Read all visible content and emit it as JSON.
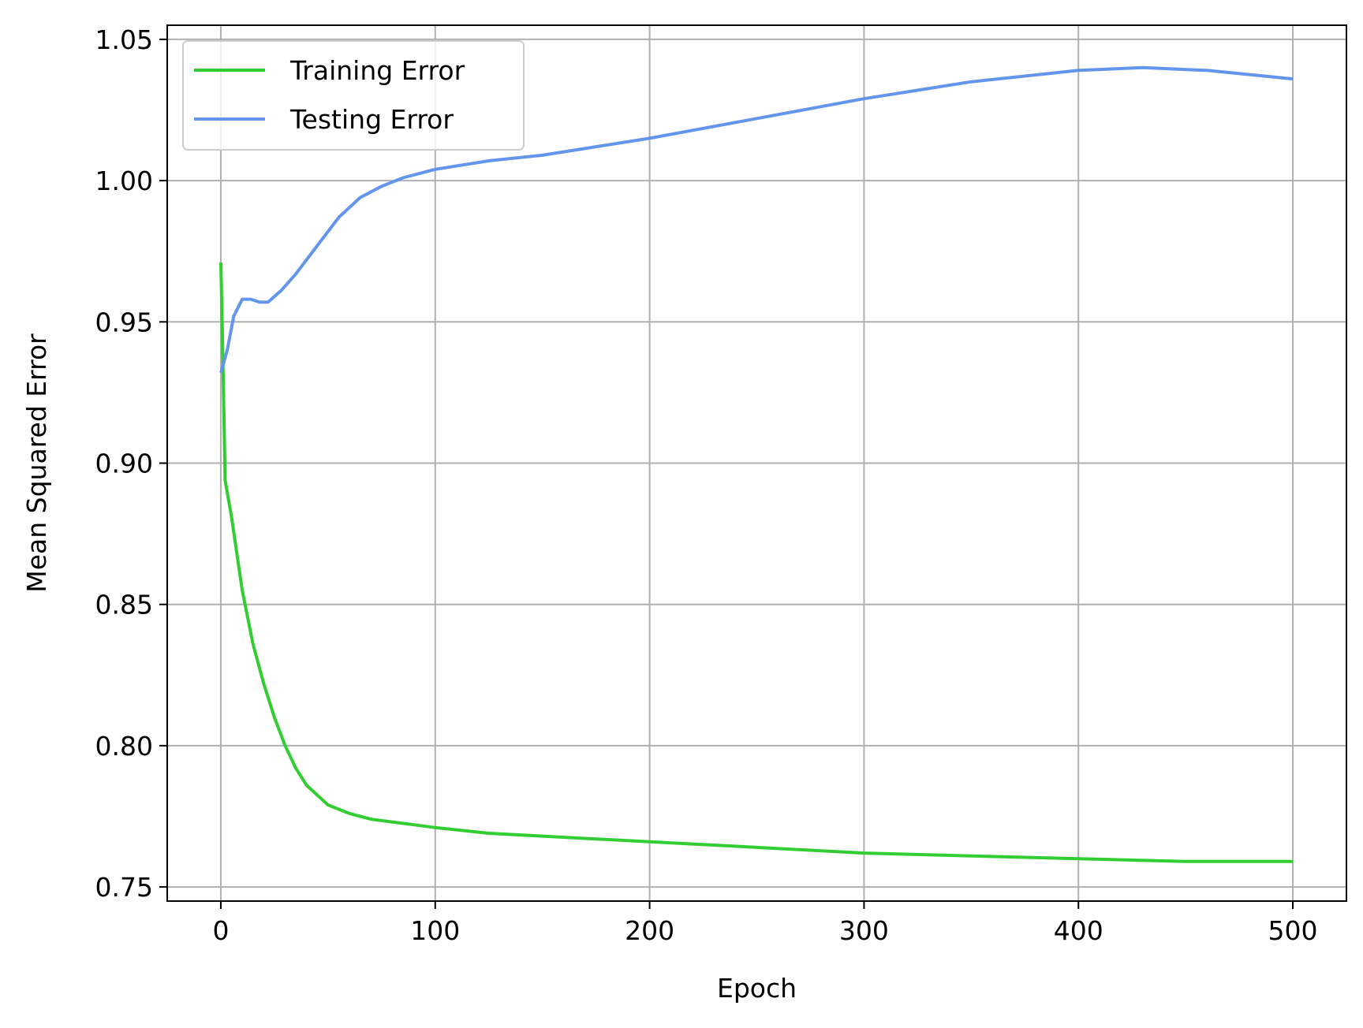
{
  "chart_data": {
    "type": "line",
    "title": "",
    "xlabel": "Epoch",
    "ylabel": "Mean Squared Error",
    "xlim": [
      -25,
      525
    ],
    "ylim": [
      0.745,
      1.055
    ],
    "xticks": [
      0,
      100,
      200,
      300,
      400,
      500
    ],
    "xtick_labels": [
      "0",
      "100",
      "200",
      "300",
      "400",
      "500"
    ],
    "yticks": [
      0.75,
      0.8,
      0.85,
      0.9,
      0.95,
      1.0,
      1.05
    ],
    "ytick_labels": [
      "0.75",
      "0.80",
      "0.85",
      "0.90",
      "0.95",
      "1.00",
      "1.05"
    ],
    "grid": true,
    "legend_position": "top-left",
    "series": [
      {
        "name": "Training Error",
        "color": "#32cd32",
        "x": [
          0,
          1,
          2,
          5,
          10,
          15,
          20,
          25,
          30,
          35,
          40,
          50,
          60,
          70,
          80,
          90,
          100,
          125,
          150,
          175,
          200,
          250,
          300,
          350,
          400,
          450,
          500
        ],
        "y": [
          0.971,
          0.935,
          0.894,
          0.881,
          0.855,
          0.836,
          0.822,
          0.81,
          0.8,
          0.792,
          0.786,
          0.779,
          0.776,
          0.774,
          0.773,
          0.772,
          0.771,
          0.769,
          0.768,
          0.767,
          0.766,
          0.764,
          0.762,
          0.761,
          0.76,
          0.759,
          0.759
        ]
      },
      {
        "name": "Testing Error",
        "color": "#6495ed",
        "x": [
          0,
          3,
          6,
          10,
          14,
          18,
          22,
          28,
          35,
          45,
          55,
          65,
          75,
          85,
          100,
          125,
          150,
          175,
          200,
          250,
          300,
          350,
          400,
          430,
          460,
          500
        ],
        "y": [
          0.932,
          0.94,
          0.952,
          0.958,
          0.958,
          0.957,
          0.957,
          0.961,
          0.967,
          0.977,
          0.987,
          0.994,
          0.998,
          1.001,
          1.004,
          1.007,
          1.009,
          1.012,
          1.015,
          1.022,
          1.029,
          1.035,
          1.039,
          1.04,
          1.039,
          1.036
        ]
      }
    ]
  }
}
